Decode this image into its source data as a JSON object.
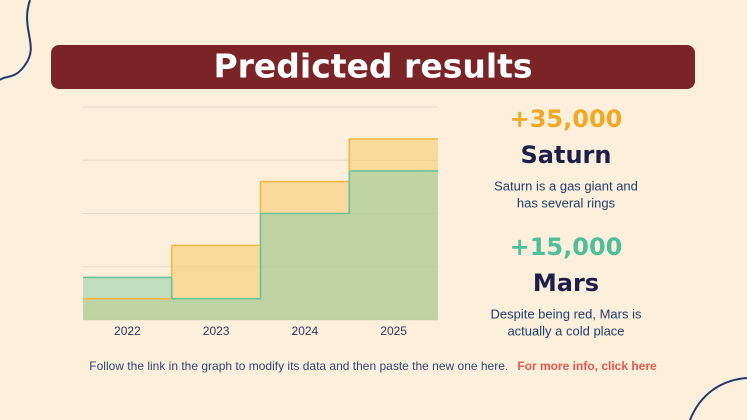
{
  "header": {
    "title": "Predicted results"
  },
  "chart_data": {
    "type": "step-area",
    "categories": [
      "2022",
      "2023",
      "2024",
      "2025"
    ],
    "series": [
      {
        "color": "#f2b94a",
        "fill": "#f5c867",
        "values": [
          0.4,
          1.4,
          2.6,
          3.4
        ]
      },
      {
        "color": "#6cc39b",
        "fill": "#8fcfa8",
        "values": [
          0.8,
          0.4,
          2.0,
          2.8
        ]
      }
    ],
    "ylim": [
      0,
      4
    ],
    "yticks": [
      0,
      1,
      2,
      3,
      4
    ],
    "grid": true,
    "show_ytick_labels": false
  },
  "stats": [
    {
      "value": "+35,000",
      "color": "#f2a823",
      "name": "Saturn",
      "description": [
        "Saturn is a gas giant and",
        "has several rings"
      ]
    },
    {
      "value": "+15,000",
      "color": "#4fbf9b",
      "name": "Mars",
      "description": [
        "Despite being red, Mars is",
        "actually a cold place"
      ]
    }
  ],
  "footer": {
    "text": "Follow the link in the graph to modify its data and then paste the new one here.",
    "link": "For more info, click here"
  }
}
